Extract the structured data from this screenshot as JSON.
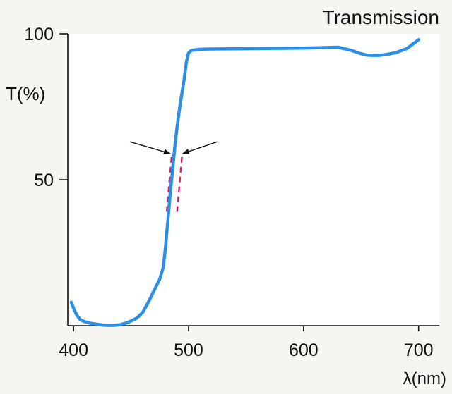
{
  "chart_data": {
    "type": "line",
    "title": "Transmission",
    "xlabel": "λ(nm)",
    "ylabel": "T(%)",
    "xlim": [
      395,
      718
    ],
    "ylim": [
      0,
      100
    ],
    "x_ticks": [
      {
        "value": 400,
        "label": "400"
      },
      {
        "value": 500,
        "label": "500"
      },
      {
        "value": 600,
        "label": "600"
      },
      {
        "value": 700,
        "label": "700"
      }
    ],
    "y_ticks": [
      {
        "value": 50,
        "label": "50"
      },
      {
        "value": 100,
        "label": "100"
      }
    ],
    "grid": false,
    "colors": {
      "curve": "#2b8fe6",
      "dashed_markers": "#d81b60",
      "arrows": "#111111",
      "axes": "#111111",
      "plot_background": "#ffffff"
    },
    "series": [
      {
        "x": [
          398,
          400,
          403,
          406,
          410,
          415,
          420,
          425,
          430,
          435,
          440,
          445,
          450,
          455,
          460,
          465,
          470,
          475,
          478,
          480,
          482,
          484,
          486,
          488,
          490,
          492,
          494,
          496,
          497,
          498,
          499,
          500,
          502,
          505,
          510,
          520,
          550,
          600,
          630,
          640,
          650,
          655,
          660,
          665,
          670,
          680,
          690,
          700
        ],
        "y": [
          8,
          6,
          3.5,
          2,
          1.3,
          0.8,
          0.5,
          0.2,
          0.1,
          0.1,
          0.3,
          0.8,
          1.6,
          2.6,
          4.5,
          8,
          12,
          16,
          20,
          27,
          36,
          45,
          53,
          61,
          68,
          74,
          79,
          84,
          87,
          90,
          92,
          93.5,
          94.2,
          94.5,
          94.7,
          94.8,
          94.9,
          95.1,
          95.4,
          94.5,
          93.2,
          92.7,
          92.6,
          92.6,
          92.8,
          93.5,
          95,
          98
        ]
      }
    ],
    "annotations": [
      {
        "type": "dashed-segment",
        "from": {
          "x": 481,
          "y": 39
        },
        "to": {
          "x": 485.5,
          "y": 59
        }
      },
      {
        "type": "dashed-segment",
        "from": {
          "x": 490,
          "y": 39
        },
        "to": {
          "x": 494.5,
          "y": 59
        }
      },
      {
        "type": "arrow",
        "from": {
          "x": 449,
          "y": 63
        },
        "to": {
          "x": 484,
          "y": 59
        }
      },
      {
        "type": "arrow",
        "from": {
          "x": 525,
          "y": 63
        },
        "to": {
          "x": 495,
          "y": 59
        }
      }
    ]
  }
}
